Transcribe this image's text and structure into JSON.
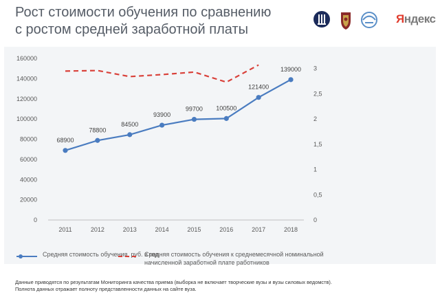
{
  "title_lines": [
    "Рост стоимости обучения по сравнению",
    "с ростом средней заработной платы"
  ],
  "logos": {
    "yandex_text": "Яндекс",
    "yandex_first_letter_color": "#e03b2c"
  },
  "chart_data": {
    "type": "line",
    "categories": [
      "2011",
      "2012",
      "2013",
      "2014",
      "2015",
      "2016",
      "2017",
      "2018"
    ],
    "y_left_ticks": [
      "0",
      "20000",
      "40000",
      "60000",
      "80000",
      "100000",
      "120000",
      "140000",
      "160000"
    ],
    "y_right_ticks": [
      "0",
      "0,5",
      "1",
      "1,5",
      "2",
      "2,5",
      "3"
    ],
    "ylim_left": [
      0,
      160000
    ],
    "ylim_right": [
      0,
      3.2
    ],
    "grid": false,
    "legend_position": "bottom",
    "series": [
      {
        "name": "Средняя стоимость обучения, руб. в год",
        "axis": "left",
        "style": "solid-markers",
        "color": "#4a7cc0",
        "values": [
          68900,
          78800,
          84500,
          93900,
          99700,
          100500,
          121400,
          139000
        ],
        "labels": [
          "68900",
          "78800",
          "84500",
          "93900",
          "99700",
          "100500",
          "121400",
          "139000"
        ]
      },
      {
        "name": "Средняя стоимость обучения к среднемесячной номинальной начисленной заработной плате работников",
        "axis": "right",
        "style": "dashed",
        "color": "#d9413a",
        "values": [
          2.95,
          2.96,
          2.84,
          2.88,
          2.93,
          2.73,
          3.07,
          null
        ]
      }
    ]
  },
  "footnote_lines": [
    "Данные приводятся по результатам Мониторинга качества приема (выборка не включает творческие вузы и вузы силовых ведомств).",
    "Полнота данных отражает полноту представленности данных на сайте вуза."
  ]
}
